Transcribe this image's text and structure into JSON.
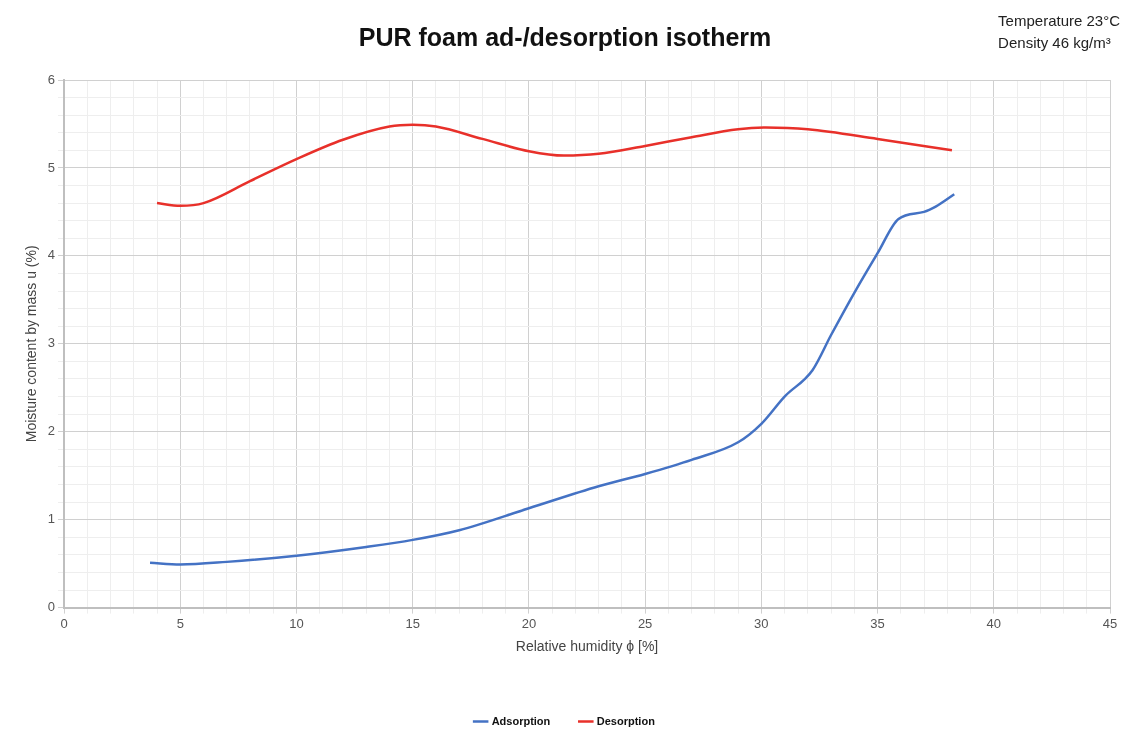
{
  "chart_data": {
    "type": "line",
    "title": "PUR foam ad-/desorption isotherm",
    "xlabel": "Relative humidity ϕ [%]",
    "ylabel": "Moisture content by mass u (%)",
    "annotations": [
      "Temperature 23°C",
      "Density 46 kg/m³"
    ],
    "xlim": [
      0,
      45
    ],
    "ylim": [
      0,
      6
    ],
    "xticks": [
      0,
      {
        "value": 1,
        "label": null
      },
      {
        "value": 2,
        "label": null
      },
      {
        "value": 3,
        "label": null
      },
      {
        "value": 4,
        "label": null
      },
      5,
      {
        "value": 6,
        "label": null
      },
      {
        "value": 7,
        "label": null
      },
      {
        "value": 8,
        "label": null
      },
      {
        "value": 9,
        "label": null
      },
      10,
      {
        "value": 11,
        "label": null
      },
      {
        "value": 12,
        "label": null
      },
      {
        "value": 13,
        "label": null
      },
      {
        "value": 14,
        "label": null
      },
      15,
      {
        "value": 16,
        "label": null
      },
      {
        "value": 17,
        "label": null
      },
      {
        "value": 18,
        "label": null
      },
      {
        "value": 19,
        "label": null
      },
      20,
      {
        "value": 21,
        "label": null
      },
      {
        "value": 22,
        "label": null
      },
      {
        "value": 23,
        "label": null
      },
      {
        "value": 24,
        "label": null
      },
      25,
      {
        "value": 26,
        "label": null
      },
      {
        "value": 27,
        "label": null
      },
      {
        "value": 28,
        "label": null
      },
      {
        "value": 29,
        "label": null
      },
      30,
      {
        "value": 31,
        "label": null
      },
      {
        "value": 32,
        "label": null
      },
      {
        "value": 33,
        "label": null
      },
      {
        "value": 34,
        "label": null
      },
      35,
      {
        "value": 36,
        "label": null
      },
      {
        "value": 37,
        "label": null
      },
      {
        "value": 38,
        "label": null
      },
      {
        "value": 39,
        "label": null
      },
      40,
      {
        "value": 41,
        "label": null
      },
      {
        "value": 42,
        "label": null
      },
      {
        "value": 43,
        "label": null
      },
      {
        "value": 44,
        "label": null
      },
      45
    ],
    "yticks": [
      0,
      {
        "value": 0.2,
        "label": null
      },
      {
        "value": 0.4,
        "label": null
      },
      {
        "value": 0.6,
        "label": null
      },
      {
        "value": 0.8,
        "label": null
      },
      1,
      {
        "value": 1.2,
        "label": null
      },
      {
        "value": 1.4,
        "label": null
      },
      {
        "value": 1.6,
        "label": null
      },
      {
        "value": 1.8,
        "label": null
      },
      2,
      {
        "value": 2.2,
        "label": null
      },
      {
        "value": 2.4,
        "label": null
      },
      {
        "value": 2.6,
        "label": null
      },
      {
        "value": 2.8,
        "label": null
      },
      3,
      {
        "value": 3.2,
        "label": null
      },
      {
        "value": 3.4,
        "label": null
      },
      {
        "value": 3.6,
        "label": null
      },
      {
        "value": 3.8,
        "label": null
      },
      4,
      {
        "value": 4.2,
        "label": null
      },
      {
        "value": 4.4,
        "label": null
      },
      {
        "value": 4.6,
        "label": null
      },
      {
        "value": 4.8,
        "label": null
      },
      5,
      {
        "value": 5.2,
        "label": null
      },
      {
        "value": 5.4,
        "label": null
      },
      {
        "value": 5.6,
        "label": null
      },
      {
        "value": 5.8,
        "label": null
      },
      6
    ],
    "grid": true,
    "legend": "bottom",
    "marker": "none",
    "line_style": "solid",
    "series": [
      {
        "name": "Adsorption",
        "color": "#4472c4",
        "x": [
          3.7,
          5,
          7,
          10,
          13,
          15,
          17,
          20,
          23,
          25,
          27,
          29,
          30,
          31,
          32.2,
          33,
          34,
          35,
          35.9,
          37,
          37.5,
          38.3
        ],
        "values": [
          0.51,
          0.49,
          0.52,
          0.59,
          0.69,
          0.77,
          0.88,
          1.13,
          1.38,
          1.52,
          1.68,
          1.88,
          2.09,
          2.4,
          2.7,
          3.1,
          3.58,
          4.03,
          4.42,
          4.5,
          4.56,
          4.7
        ]
      },
      {
        "name": "Desorption",
        "color": "#e8302a",
        "x": [
          4,
          5,
          6,
          8,
          10,
          12,
          14,
          15,
          16,
          18,
          20,
          21.5,
          23,
          25,
          27,
          29,
          30.2,
          32,
          35,
          38.2
        ],
        "values": [
          4.6,
          4.57,
          4.6,
          4.85,
          5.1,
          5.32,
          5.47,
          5.49,
          5.47,
          5.33,
          5.19,
          5.14,
          5.16,
          5.25,
          5.35,
          5.44,
          5.46,
          5.44,
          5.33,
          5.2
        ]
      }
    ]
  }
}
